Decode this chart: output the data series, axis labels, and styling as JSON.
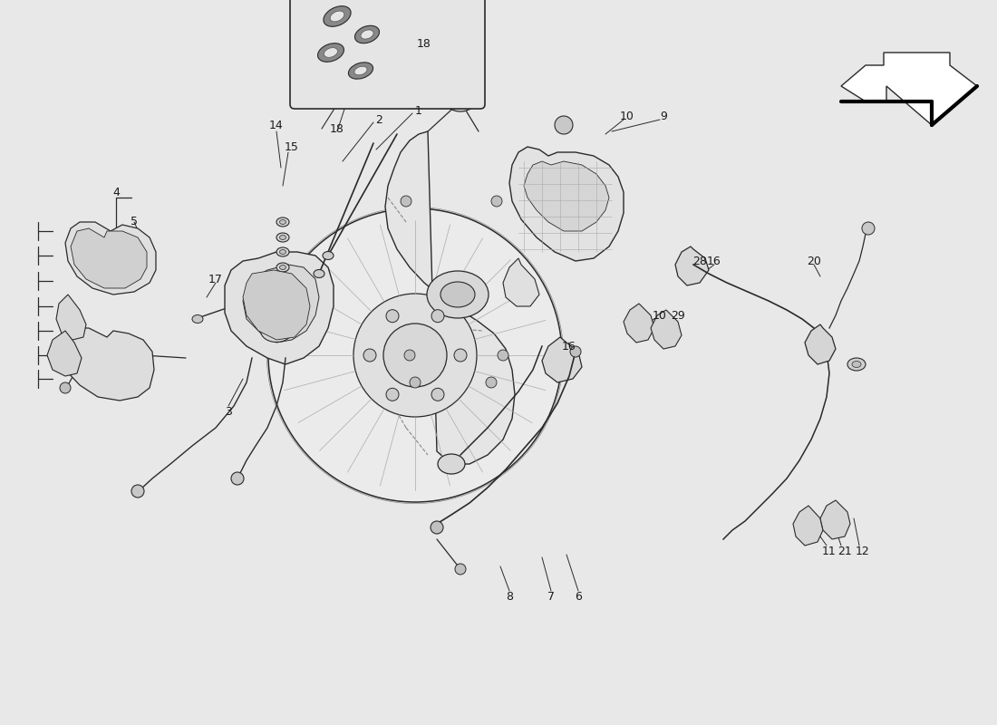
{
  "background_color": "#e8e8e8",
  "figsize": [
    11.0,
    8.0
  ],
  "dpi": 100,
  "line_color": "#2a2a2a",
  "label_color": "#1a1a1a",
  "label_fontsize": 9,
  "lw_thin": 0.7,
  "lw_main": 1.0,
  "lw_thick": 2.5,
  "labels": [
    [
      "1",
      4.62,
      6.78
    ],
    [
      "2",
      4.18,
      6.68
    ],
    [
      "3",
      2.52,
      3.45
    ],
    [
      "4",
      1.28,
      5.88
    ],
    [
      "5",
      1.48,
      5.55
    ],
    [
      "6",
      6.38,
      1.42
    ],
    [
      "7",
      6.08,
      1.42
    ],
    [
      "8",
      5.62,
      1.42
    ],
    [
      "9",
      7.32,
      6.72
    ],
    [
      "10",
      6.92,
      6.72
    ],
    [
      "10",
      7.28,
      4.52
    ],
    [
      "11",
      9.15,
      1.92
    ],
    [
      "12",
      9.52,
      1.92
    ],
    [
      "14",
      3.05,
      6.62
    ],
    [
      "15",
      3.22,
      6.38
    ],
    [
      "16",
      6.28,
      4.18
    ],
    [
      "16",
      7.88,
      5.12
    ],
    [
      "17",
      2.38,
      4.92
    ],
    [
      "18",
      4.68,
      7.52
    ],
    [
      "18",
      3.72,
      6.58
    ],
    [
      "20",
      8.98,
      5.12
    ],
    [
      "21",
      9.32,
      1.92
    ],
    [
      "28",
      7.72,
      5.12
    ],
    [
      "29",
      7.48,
      4.52
    ]
  ]
}
